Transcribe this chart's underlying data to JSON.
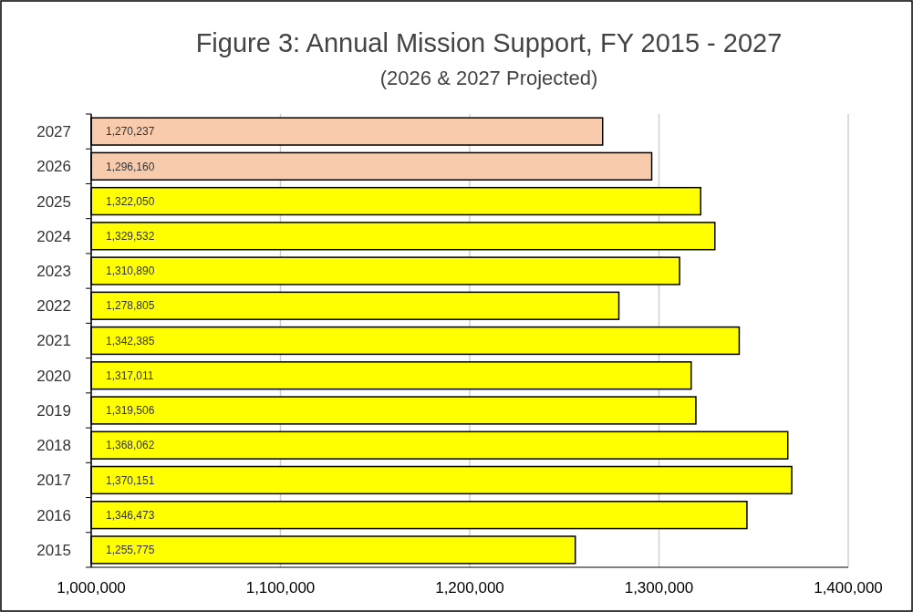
{
  "chart_data": {
    "type": "bar",
    "orientation": "horizontal",
    "title": "Figure 3: Annual Mission Support, FY  2015 - 2027",
    "subtitle": "(2026 & 2027 Projected)",
    "categories": [
      "2027",
      "2026",
      "2025",
      "2024",
      "2023",
      "2022",
      "2021",
      "2020",
      "2019",
      "2018",
      "2017",
      "2016",
      "2015"
    ],
    "values": [
      1270237,
      1296160,
      1322050,
      1329532,
      1310890,
      1278805,
      1342385,
      1317011,
      1319506,
      1368062,
      1370151,
      1346473,
      1255775
    ],
    "colors": [
      "#f8cbad",
      "#f8cbad",
      "#ffff00",
      "#ffff00",
      "#ffff00",
      "#ffff00",
      "#ffff00",
      "#ffff00",
      "#ffff00",
      "#ffff00",
      "#ffff00",
      "#ffff00",
      "#ffff00"
    ],
    "xlim": [
      1000000,
      1400000
    ],
    "xticks": [
      {
        "value": 1000000,
        "label": "1,000,000"
      },
      {
        "value": 1100000,
        "label": "1,100,000"
      },
      {
        "value": 1200000,
        "label": "1,200,000"
      },
      {
        "value": 1300000,
        "label": "1,300,000"
      },
      {
        "value": 1400000,
        "label": "1,400,000"
      }
    ],
    "value_labels": [
      "1,270,237",
      "1,296,160",
      "1,322,050",
      "1,329,532",
      "1,310,890",
      "1,278,805",
      "1,342,385",
      "1,317,011",
      "1,319,506",
      "1,368,062",
      "1,370,151",
      "1,346,473",
      "1,255,775"
    ],
    "grid": "x"
  }
}
